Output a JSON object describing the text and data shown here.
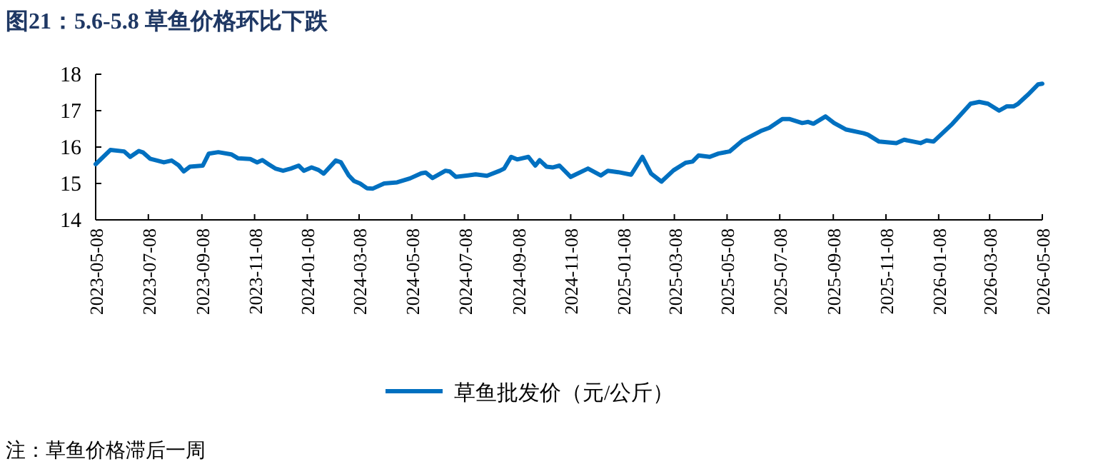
{
  "chart_data": {
    "type": "line",
    "title": "图21：5.6-5.8 草鱼价格环比下跌",
    "annotations": [
      "注：草鱼价格滞后一周"
    ],
    "x": [
      "2023-05-08",
      "2023-05-25",
      "2023-06-10",
      "2023-06-17",
      "2023-06-27",
      "2023-07-02",
      "2023-07-10",
      "2023-07-26",
      "2023-08-04",
      "2023-08-12",
      "2023-08-18",
      "2023-08-25",
      "2023-09-09",
      "2023-09-16",
      "2023-09-27",
      "2023-10-12",
      "2023-10-20",
      "2023-11-03",
      "2023-11-11",
      "2023-11-17",
      "2023-11-24",
      "2023-12-02",
      "2023-12-11",
      "2023-12-20",
      "2023-12-29",
      "2024-01-04",
      "2024-01-13",
      "2024-01-21",
      "2024-01-27",
      "2024-02-10",
      "2024-02-16",
      "2024-02-25",
      "2024-03-02",
      "2024-03-09",
      "2024-03-17",
      "2024-03-24",
      "2024-04-06",
      "2024-04-21",
      "2024-05-06",
      "2024-05-19",
      "2024-05-24",
      "2024-06-01",
      "2024-06-16",
      "2024-06-21",
      "2024-06-28",
      "2024-07-12",
      "2024-07-21",
      "2024-08-03",
      "2024-08-18",
      "2024-08-23",
      "2024-08-31",
      "2024-09-07",
      "2024-09-20",
      "2024-09-28",
      "2024-10-03",
      "2024-10-11",
      "2024-10-18",
      "2024-10-26",
      "2024-11-08",
      "2024-11-28",
      "2024-12-13",
      "2024-12-21",
      "2025-01-02",
      "2025-01-17",
      "2025-01-30",
      "2025-02-09",
      "2025-02-21",
      "2025-03-07",
      "2025-03-21",
      "2025-03-29",
      "2025-04-05",
      "2025-04-18",
      "2025-04-28",
      "2025-05-11",
      "2025-05-26",
      "2025-06-16",
      "2025-06-26",
      "2025-07-11",
      "2025-07-19",
      "2025-08-03",
      "2025-08-10",
      "2025-08-16",
      "2025-08-30",
      "2025-09-09",
      "2025-09-23",
      "2025-10-13",
      "2025-10-18",
      "2025-10-31",
      "2025-11-20",
      "2025-11-29",
      "2025-12-18",
      "2025-12-25",
      "2026-01-02",
      "2026-01-24",
      "2026-02-14",
      "2026-02-24",
      "2026-03-06",
      "2026-03-19",
      "2026-03-28",
      "2026-04-05",
      "2026-04-10",
      "2026-04-21",
      "2026-05-03",
      "2026-05-08"
    ],
    "series": [
      {
        "name": "草鱼批发价（元/公斤）",
        "color": "#0070c0",
        "values": [
          15.53,
          15.92,
          15.88,
          15.73,
          15.89,
          15.85,
          15.68,
          15.58,
          15.63,
          15.5,
          15.33,
          15.46,
          15.49,
          15.82,
          15.86,
          15.8,
          15.69,
          15.67,
          15.58,
          15.64,
          15.53,
          15.41,
          15.35,
          15.41,
          15.49,
          15.35,
          15.44,
          15.37,
          15.27,
          15.63,
          15.58,
          15.22,
          15.07,
          15.0,
          14.87,
          14.86,
          15.0,
          15.03,
          15.14,
          15.28,
          15.3,
          15.15,
          15.35,
          15.33,
          15.18,
          15.22,
          15.25,
          15.21,
          15.35,
          15.41,
          15.73,
          15.66,
          15.73,
          15.49,
          15.64,
          15.46,
          15.44,
          15.49,
          15.18,
          15.41,
          15.22,
          15.35,
          15.31,
          15.24,
          15.73,
          15.27,
          15.05,
          15.36,
          15.57,
          15.6,
          15.77,
          15.73,
          15.82,
          15.88,
          16.18,
          16.44,
          16.53,
          16.77,
          16.77,
          16.66,
          16.69,
          16.64,
          16.84,
          16.66,
          16.48,
          16.38,
          16.34,
          16.15,
          16.11,
          16.2,
          16.11,
          16.18,
          16.15,
          16.64,
          17.19,
          17.24,
          17.19,
          17.0,
          17.12,
          17.12,
          17.19,
          17.43,
          17.72,
          17.74
        ]
      }
    ],
    "xlim": [
      "2023-05-08",
      "2026-05-08"
    ],
    "xticks": [
      "2023-05-08",
      "2023-07-08",
      "2023-09-08",
      "2023-11-08",
      "2024-01-08",
      "2024-03-08",
      "2024-05-08",
      "2024-07-08",
      "2024-09-08",
      "2024-11-08",
      "2025-01-08",
      "2025-03-08",
      "2025-05-08",
      "2025-07-08",
      "2025-09-08",
      "2025-11-08",
      "2026-01-08",
      "2026-03-08",
      "2026-05-08"
    ],
    "ylim": [
      14,
      18
    ],
    "yticks": [
      14,
      15,
      16,
      17,
      18
    ],
    "legend": "bottom",
    "line_style": "solid",
    "marker": "none"
  }
}
